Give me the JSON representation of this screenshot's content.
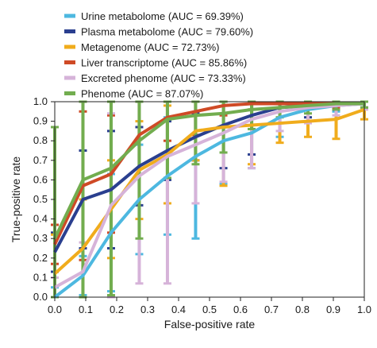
{
  "chart_data": {
    "type": "line",
    "xlabel": "False-positive rate",
    "ylabel": "True-positive rate",
    "xlim": [
      0,
      1
    ],
    "ylim": [
      0,
      1
    ],
    "xticks": [
      "0.0",
      "0.1",
      "0.2",
      "0.3",
      "0.4",
      "0.5",
      "0.6",
      "0.7",
      "0.8",
      "0.9",
      "1.0"
    ],
    "yticks": [
      "0.0",
      "0.1",
      "0.2",
      "0.3",
      "0.4",
      "0.5",
      "0.6",
      "0.7",
      "0.8",
      "0.9",
      "1.0"
    ],
    "x": [
      0,
      0.091,
      0.182,
      0.273,
      0.364,
      0.455,
      0.545,
      0.636,
      0.727,
      0.818,
      0.909,
      1.0
    ],
    "grid": false,
    "legend_position": "top-left",
    "series": [
      {
        "name": "Urine metabolome (AUC = 69.39%)",
        "color": "#4db8e0",
        "values": [
          0.0,
          0.11,
          0.33,
          0.5,
          0.62,
          0.72,
          0.8,
          0.84,
          0.92,
          0.96,
          0.98,
          0.99
        ],
        "err": [
          0.05,
          0.1,
          0.3,
          0.28,
          0.3,
          0.42,
          0.22,
          0.18,
          0.1,
          0.06,
          0.03,
          0.02
        ]
      },
      {
        "name": "Plasma metabolome (AUC = 79.60%)",
        "color": "#2a3f8f",
        "values": [
          0.23,
          0.5,
          0.55,
          0.67,
          0.75,
          0.82,
          0.88,
          0.93,
          0.97,
          0.98,
          0.99,
          0.99
        ],
        "err": [
          0.1,
          0.25,
          0.3,
          0.2,
          0.15,
          0.12,
          0.22,
          0.2,
          0.08,
          0.06,
          0.03,
          0.02
        ]
      },
      {
        "name": "Metagenome (AUC = 72.73%)",
        "color": "#f0ac1c",
        "values": [
          0.12,
          0.25,
          0.45,
          0.65,
          0.73,
          0.85,
          0.87,
          0.88,
          0.89,
          0.9,
          0.91,
          0.96
        ],
        "err": [
          0.2,
          0.25,
          0.25,
          0.25,
          0.25,
          0.15,
          0.3,
          0.2,
          0.1,
          0.08,
          0.1,
          0.05
        ]
      },
      {
        "name": "Liver transcriptome (AUC = 85.86%)",
        "color": "#cf4a26",
        "values": [
          0.27,
          0.57,
          0.63,
          0.83,
          0.92,
          0.95,
          0.98,
          0.99,
          0.99,
          0.99,
          0.99,
          0.99
        ],
        "err": [
          0.1,
          0.38,
          0.3,
          0.2,
          0.12,
          0.12,
          0.05,
          0.03,
          0.02,
          0.02,
          0.02,
          0.02
        ]
      },
      {
        "name": "Excreted phenome (AUC = 73.33%)",
        "color": "#d6b3d9",
        "values": [
          0.05,
          0.13,
          0.47,
          0.62,
          0.72,
          0.78,
          0.84,
          0.91,
          0.95,
          0.97,
          0.98,
          0.99
        ],
        "err": [
          0.05,
          0.15,
          0.47,
          0.55,
          0.65,
          0.3,
          0.25,
          0.25,
          0.1,
          0.08,
          0.05,
          0.03
        ]
      },
      {
        "name": "Phenome (AUC = 87.07%)",
        "color": "#72ad4f",
        "values": [
          0.3,
          0.6,
          0.66,
          0.8,
          0.91,
          0.93,
          0.94,
          0.96,
          0.97,
          0.98,
          0.99,
          0.99
        ],
        "err": [
          0.57,
          0.6,
          0.65,
          0.5,
          0.3,
          0.25,
          0.2,
          0.1,
          0.05,
          0.04,
          0.03,
          0.02
        ]
      }
    ]
  }
}
